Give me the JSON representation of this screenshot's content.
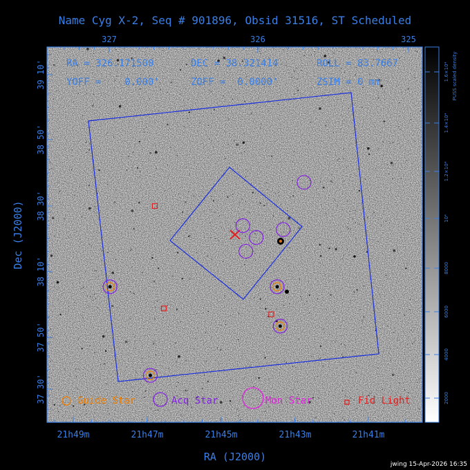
{
  "title": "Name Cyg X-2, Seq # 901896, Obsid 31516, ST Scheduled",
  "top_axis_ticks": [
    "327",
    "326",
    "325"
  ],
  "bottom_axis_ticks": [
    "21h49m",
    "21h47m",
    "21h45m",
    "21h43m",
    "21h41m"
  ],
  "left_axis_ticks": [
    "39 10'",
    "38 50'",
    "38 30'",
    "38 10'",
    "37 50'",
    "37 30'"
  ],
  "xlabel": "RA (J2000)",
  "ylabel": "Dec (J2000)",
  "info": {
    "ra": "RA = 326.171500",
    "dec": "DEC = 38.321414",
    "roll": "ROLL = 83.7667",
    "yoff": "YOFF =    0.000'",
    "zoff": "ZOFF =  0.0000'",
    "zsim": "ZSIM = 0 mm"
  },
  "legend": {
    "guide": "Guide Star",
    "acq": "Acq Star",
    "mon": "Mon Star",
    "fid": "Fid Light"
  },
  "colorbar": {
    "label": "PUSS scaled density",
    "ticks": [
      "2000",
      "4000",
      "6000",
      "8000",
      "10⁴",
      "1.2×10⁴",
      "1.4×10⁴",
      "1.6×10⁴"
    ]
  },
  "footer": "jwing 15-Apr-2026 16:35",
  "colors": {
    "background": "#000000",
    "axis": "#3a7fe6",
    "guide": "#f07f00",
    "acq": "#8020e0",
    "mon": "#e020e0",
    "fid": "#e02020"
  },
  "chart_data": {
    "type": "scatter",
    "acq_stars": [
      {
        "ra": 326.99,
        "dec": 38.09
      },
      {
        "ra": 326.72,
        "dec": 37.64
      },
      {
        "ra": 326.01,
        "dec": 38.34
      },
      {
        "ra": 325.85,
        "dec": 37.89
      },
      {
        "ra": 325.87,
        "dec": 38.09
      },
      {
        "ra": 326.1,
        "dec": 38.4
      },
      {
        "ra": 325.83,
        "dec": 38.38
      },
      {
        "ra": 325.69,
        "dec": 38.62
      },
      {
        "ra": 326.08,
        "dec": 38.27
      }
    ],
    "guide_stars": [
      {
        "ra": 326.99,
        "dec": 38.09
      },
      {
        "ra": 326.72,
        "dec": 37.64
      },
      {
        "ra": 325.85,
        "dec": 37.89
      },
      {
        "ra": 325.87,
        "dec": 38.09
      }
    ],
    "fid_lights": [
      {
        "ra": 326.69,
        "dec": 38.5
      },
      {
        "ra": 326.63,
        "dec": 37.98
      },
      {
        "ra": 325.91,
        "dec": 37.95
      }
    ]
  }
}
